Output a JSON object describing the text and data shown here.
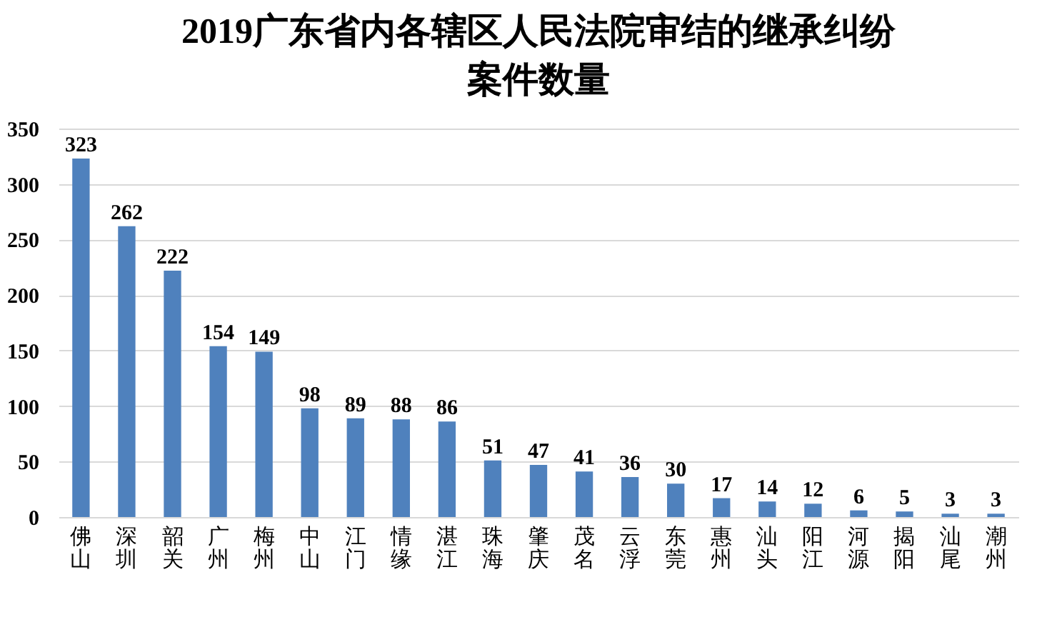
{
  "chart_data": {
    "type": "bar",
    "title": "2019广东省内各辖区人民法院审结的继承纠纷案件数量",
    "categories": [
      "佛山",
      "深圳",
      "韶关",
      "广州",
      "梅州",
      "中山",
      "江门",
      "情缘",
      "湛江",
      "珠海",
      "肇庆",
      "茂名",
      "云浮",
      "东莞",
      "惠州",
      "汕头",
      "阳江",
      "河源",
      "揭阳",
      "汕尾",
      "潮州"
    ],
    "values": [
      323,
      262,
      222,
      154,
      149,
      98,
      89,
      88,
      86,
      51,
      47,
      41,
      36,
      30,
      17,
      14,
      12,
      6,
      5,
      3,
      3
    ],
    "color": "#4f81bd",
    "ylim": [
      0,
      350
    ],
    "yticks": [
      0,
      50,
      100,
      150,
      200,
      250,
      300,
      350
    ],
    "grid": "y",
    "data_labels": true
  }
}
